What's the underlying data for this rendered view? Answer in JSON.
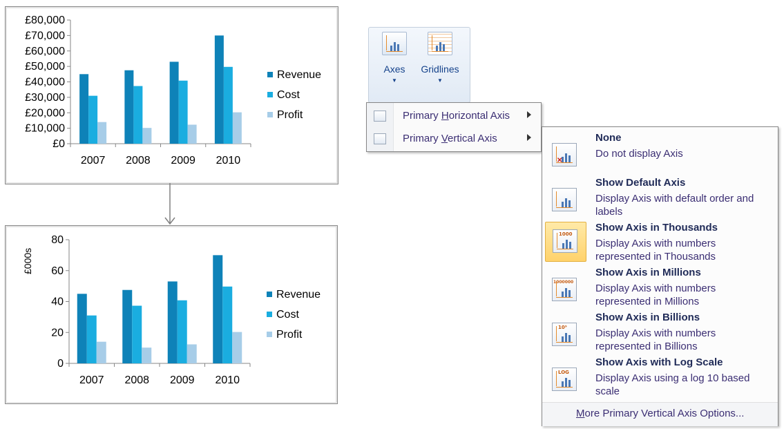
{
  "colors": {
    "revenue": "#0e82b8",
    "cost": "#1aade0",
    "profit": "#a7cde8",
    "menu_text": "#3b2e73",
    "menu_title": "#1f2a57",
    "highlight": "#ffd26b"
  },
  "chart_data": [
    {
      "type": "bar",
      "categories": [
        "2007",
        "2008",
        "2009",
        "2010"
      ],
      "series": [
        {
          "name": "Revenue",
          "values": [
            45000,
            47500,
            53000,
            70000
          ]
        },
        {
          "name": "Cost",
          "values": [
            31000,
            37300,
            40800,
            49700
          ]
        },
        {
          "name": "Profit",
          "values": [
            14000,
            10200,
            12300,
            20300
          ]
        }
      ],
      "yticks": [
        "£0",
        "£10,000",
        "£20,000",
        "£30,000",
        "£40,000",
        "£50,000",
        "£60,000",
        "£70,000",
        "£80,000"
      ],
      "ylim": [
        0,
        80000
      ],
      "ylabel": "",
      "legend": "right"
    },
    {
      "type": "bar",
      "categories": [
        "2007",
        "2008",
        "2009",
        "2010"
      ],
      "series": [
        {
          "name": "Revenue",
          "values": [
            45,
            47.5,
            53,
            70
          ]
        },
        {
          "name": "Cost",
          "values": [
            31,
            37.3,
            40.8,
            49.7
          ]
        },
        {
          "name": "Profit",
          "values": [
            14,
            10.2,
            12.3,
            20.3
          ]
        }
      ],
      "yticks": [
        "0",
        "20",
        "40",
        "60",
        "80"
      ],
      "ylim": [
        0,
        80
      ],
      "ylabel": "£000s",
      "legend": "right"
    }
  ],
  "ribbon": {
    "axes_label": "Axes",
    "gridlines_label": "Gridlines",
    "axes_icon": "axes-chart-icon",
    "gridlines_icon": "gridlines-chart-icon"
  },
  "submenu": {
    "items": [
      {
        "pre": "Primary ",
        "acc": "H",
        "post": "orizontal Axis",
        "icon": "horizontal-axis-icon"
      },
      {
        "pre": "Primary ",
        "acc": "V",
        "post": "ertical Axis",
        "icon": "vertical-axis-icon"
      }
    ]
  },
  "axis_menu": {
    "options": [
      {
        "title": "None",
        "desc": "Do not display Axis",
        "icon": "no-axis-icon",
        "tag": ""
      },
      {
        "title": "Show Default Axis",
        "desc": "Display Axis with default order and labels",
        "icon": "default-axis-icon",
        "tag": ""
      },
      {
        "title": "Show Axis in Thousands",
        "desc": "Display Axis with numbers represented in Thousands",
        "icon": "thousands-axis-icon",
        "tag": "1000"
      },
      {
        "title": "Show Axis in Millions",
        "desc": "Display Axis with numbers represented in Millions",
        "icon": "millions-axis-icon",
        "tag": "1000000"
      },
      {
        "title": "Show Axis in Billions",
        "desc": "Display Axis with numbers represented in Billions",
        "icon": "billions-axis-icon",
        "tag": "10⁹"
      },
      {
        "title": "Show Axis with Log Scale",
        "desc": "Display Axis using a log 10 based scale",
        "icon": "log-axis-icon",
        "tag": "LOG"
      }
    ],
    "selected": "Show Axis in Thousands",
    "footer": {
      "acc": "M",
      "rest": "ore Primary Vertical Axis Options..."
    }
  }
}
